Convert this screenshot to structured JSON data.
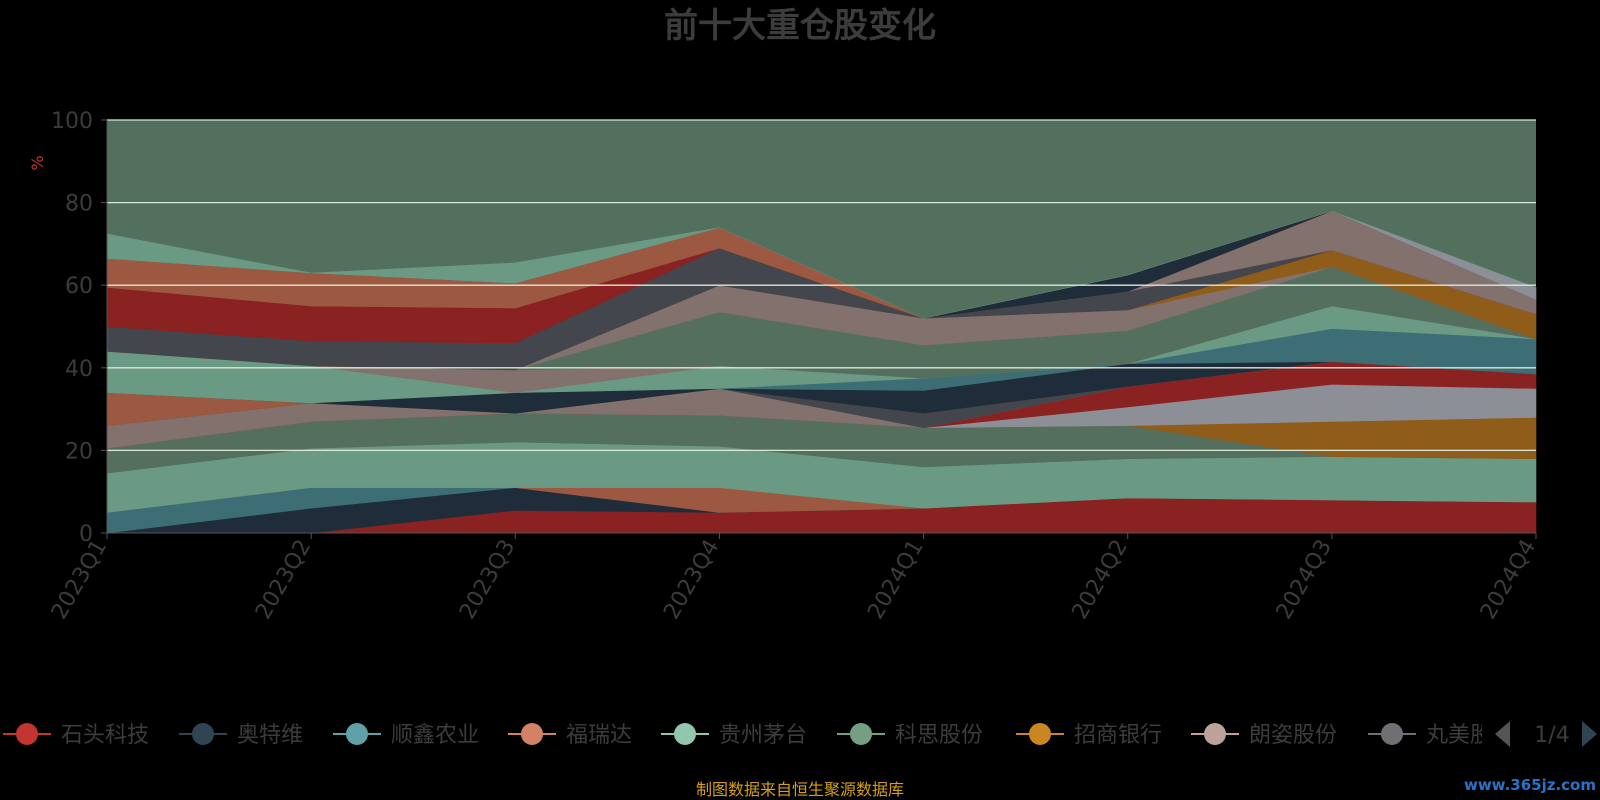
{
  "chart_data": {
    "type": "area",
    "stacked": true,
    "title": "前十大重仓股变化",
    "ylabel": "%",
    "ylim": [
      0,
      100
    ],
    "yticks": [
      0,
      20,
      40,
      60,
      80,
      100
    ],
    "grid": true,
    "x": [
      "2023Q1",
      "2023Q2",
      "2023Q3",
      "2023Q4",
      "2024Q1",
      "2024Q2",
      "2024Q3",
      "2024Q4"
    ],
    "series": [
      {
        "color": "#8b2222",
        "values": [
          0,
          0,
          5.5,
          5.0,
          6.0,
          8.5,
          8.0,
          7.5
        ]
      },
      {
        "color": "#1f2d3a",
        "values": [
          0,
          6.0,
          5.5,
          0,
          0,
          0,
          0,
          0
        ]
      },
      {
        "color": "#3d6e76",
        "values": [
          5.0,
          5.0,
          0,
          0,
          0,
          0,
          0,
          0
        ]
      },
      {
        "color": "#9c5840",
        "values": [
          0,
          0,
          0,
          6.0,
          0,
          0,
          0,
          0
        ]
      },
      {
        "color": "#6a9a83",
        "values": [
          9.5,
          9.5,
          11.0,
          10.0,
          10.0,
          9.5,
          10.5,
          10.5
        ]
      },
      {
        "color": "#556f5e",
        "values": [
          6.0,
          6.5,
          7.0,
          7.5,
          9.5,
          8.0,
          0,
          0
        ]
      },
      {
        "color": "#8f5c1a",
        "values": [
          0,
          0,
          0,
          0,
          0,
          0,
          8.5,
          10.0
        ]
      },
      {
        "color": "#8c8f96",
        "values": [
          0,
          0,
          0,
          0,
          0,
          4.5,
          9.0,
          7.0
        ]
      },
      {
        "color": "#8b2222",
        "values": [
          0,
          0,
          0,
          0,
          0,
          5.0,
          5.5,
          3.5
        ]
      },
      {
        "color": "#82716d",
        "values": [
          5.5,
          4.5,
          0,
          6.5,
          0,
          0,
          0,
          0
        ]
      },
      {
        "color": "#43464c",
        "values": [
          0,
          0,
          0,
          0,
          3.5,
          0,
          0,
          0
        ]
      },
      {
        "color": "#9c5840",
        "values": [
          8.0,
          0,
          0,
          0,
          0,
          0,
          0,
          0
        ]
      },
      {
        "color": "#1f2d3a",
        "values": [
          0,
          0,
          5.0,
          0,
          5.5,
          5.5,
          0,
          0
        ]
      },
      {
        "color": "#3d6e76",
        "values": [
          0,
          0,
          0,
          0,
          3.0,
          0,
          8.0,
          8.5
        ]
      },
      {
        "color": "#6a9a83",
        "values": [
          10.0,
          9.0,
          0,
          5.5,
          0,
          0,
          5.5,
          0
        ]
      },
      {
        "color": "#82716d",
        "values": [
          0,
          0,
          5.5,
          0,
          0,
          0,
          0,
          0
        ]
      },
      {
        "color": "#556f5e",
        "values": [
          0,
          0,
          0,
          13.0,
          8.0,
          8.0,
          9.5,
          0
        ]
      },
      {
        "color": "#82716d",
        "values": [
          0,
          0,
          0,
          6.5,
          6.5,
          5.0,
          0,
          0
        ]
      },
      {
        "color": "#8f5c1a",
        "values": [
          0,
          0,
          0,
          0,
          0,
          0,
          4.0,
          6.0
        ]
      },
      {
        "color": "#43464c",
        "values": [
          6.0,
          6.0,
          6.5,
          9.0,
          0,
          4.5,
          0,
          0
        ]
      },
      {
        "color": "#8b2222",
        "values": [
          9.5,
          8.5,
          8.5,
          0,
          0,
          0,
          0,
          0
        ]
      },
      {
        "color": "#82716d",
        "values": [
          0,
          0,
          0,
          0,
          0,
          0,
          9.5,
          3.5
        ]
      },
      {
        "color": "#9c5840",
        "values": [
          7.0,
          8.0,
          6.0,
          5.0,
          0,
          0,
          0,
          0
        ]
      },
      {
        "color": "#1f2d3a",
        "values": [
          0,
          0,
          0,
          0,
          0,
          4.0,
          0,
          0
        ]
      },
      {
        "color": "#8c8f96",
        "values": [
          0,
          0,
          0,
          0,
          0,
          0,
          0,
          3.0
        ]
      },
      {
        "color": "#6a9a83",
        "values": [
          6.0,
          0,
          5.0,
          0,
          0,
          0,
          0,
          0
        ]
      }
    ],
    "remainder_color": "#53705e",
    "legend": {
      "position": "bottom",
      "items": [
        {
          "name": "石头科技",
          "color": "#c23531"
        },
        {
          "name": "奥特维",
          "color": "#2f4554"
        },
        {
          "name": "顺鑫农业",
          "color": "#61a0a8"
        },
        {
          "name": "福瑞达",
          "color": "#d48265"
        },
        {
          "name": "贵州茅台",
          "color": "#91c7ae"
        },
        {
          "name": "科思股份",
          "color": "#749f83"
        },
        {
          "name": "招商银行",
          "color": "#ca8622"
        },
        {
          "name": "朗姿股份",
          "color": "#bda29a"
        },
        {
          "name": "丸美股份",
          "color": "#6e7074"
        }
      ],
      "page": "1/4"
    },
    "source_note": "制图数据来自恒生聚源数据库",
    "watermark": "www.365jz.com"
  }
}
